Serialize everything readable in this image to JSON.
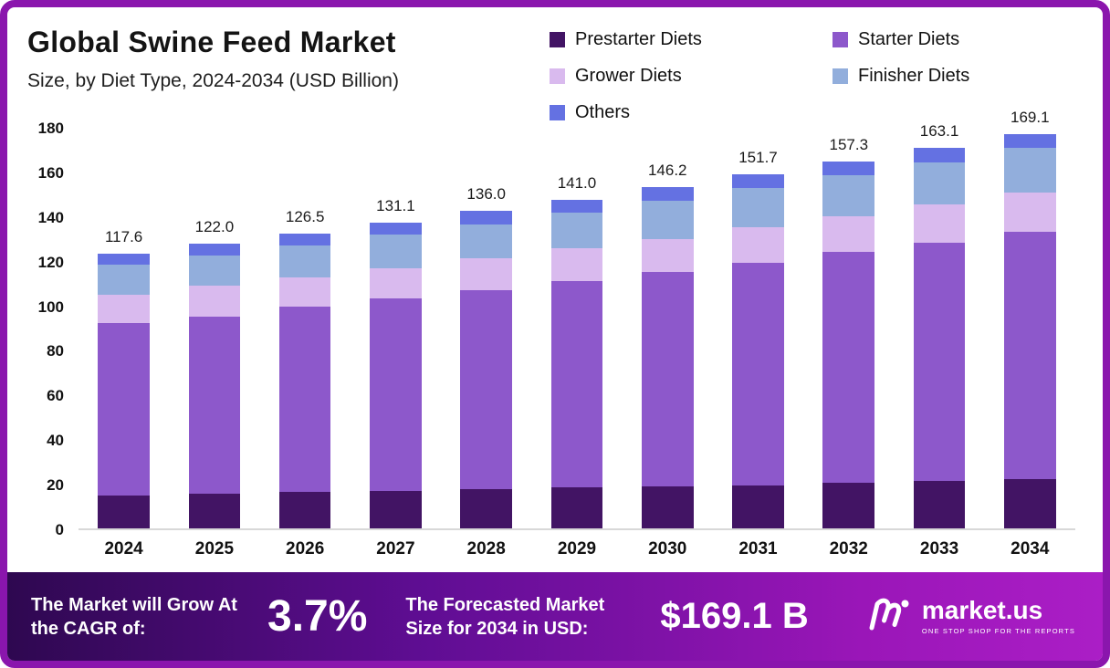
{
  "header": {
    "title": "Global Swine Feed Market",
    "subtitle": "Size, by Diet Type, 2024-2034 (USD Billion)"
  },
  "chart_data": {
    "type": "bar",
    "stacked": true,
    "title": "Global Swine Feed Market Size, by Diet Type, 2024-2034 (USD Billion)",
    "categories": [
      "2024",
      "2025",
      "2026",
      "2027",
      "2028",
      "2029",
      "2030",
      "2031",
      "2032",
      "2033",
      "2034"
    ],
    "series": [
      {
        "name": "Prestarter Diets",
        "color": "#421464",
        "values": [
          14,
          15,
          15.5,
          16,
          17,
          17.5,
          18,
          18.5,
          19.5,
          20.5,
          21
        ]
      },
      {
        "name": "Starter Diets",
        "color": "#8d58cb",
        "values": [
          74,
          76,
          79.5,
          82.5,
          85,
          88.5,
          92,
          95.5,
          99,
          102,
          106
        ]
      },
      {
        "name": "Grower Diets",
        "color": "#d9baee",
        "values": [
          12,
          13,
          12.5,
          13,
          14,
          14,
          14,
          15,
          15.5,
          16.5,
          17
        ]
      },
      {
        "name": "Finisher Diets",
        "color": "#92aedc",
        "values": [
          13,
          13,
          14,
          14.5,
          14.5,
          15.5,
          16.5,
          17,
          17.5,
          18,
          19
        ]
      },
      {
        "name": "Others",
        "color": "#6471e2",
        "values": [
          4.6,
          5,
          5,
          5.1,
          5.5,
          5.5,
          5.7,
          5.7,
          5.8,
          6.1,
          6.1
        ]
      }
    ],
    "totals": [
      117.6,
      122.0,
      126.5,
      131.1,
      136.0,
      141.0,
      146.2,
      151.7,
      157.3,
      163.1,
      169.1
    ],
    "total_labels": [
      "117.6",
      "122.0",
      "126.5",
      "131.1",
      "136.0",
      "141.0",
      "146.2",
      "151.7",
      "157.3",
      "163.1",
      "169.1"
    ],
    "ylim": [
      0,
      180
    ],
    "yticks": [
      0,
      20,
      40,
      60,
      80,
      100,
      120,
      140,
      160,
      180
    ],
    "grid": false,
    "legend_position": "top-right"
  },
  "banner": {
    "cagr_label": "The Market will Grow At the CAGR of:",
    "cagr_value": "3.7%",
    "forecast_label": "The Forecasted Market Size for 2034 in USD:",
    "forecast_value": "$169.1 B",
    "brand": "market.us",
    "brand_tagline": "ONE STOP SHOP FOR THE REPORTS"
  }
}
